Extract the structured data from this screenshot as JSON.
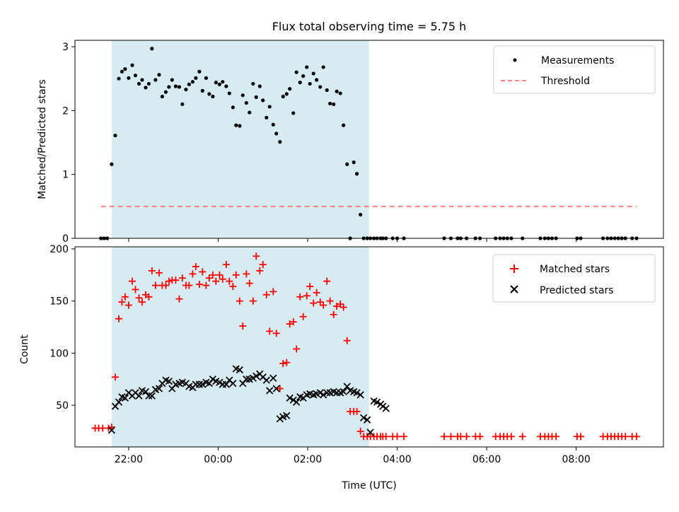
{
  "chart_data": {
    "title": "Flux total observing time = 5.75 h",
    "xlabel": "Time (UTC)",
    "x_unit": "hours (UTC, values >= 24 are after midnight)",
    "xlim": [
      20.8,
      33.95
    ],
    "x_ticks": [
      {
        "value": 22,
        "label": "22:00"
      },
      {
        "value": 24,
        "label": "00:00"
      },
      {
        "value": 26,
        "label": "02:00"
      },
      {
        "value": 28,
        "label": "04:00"
      },
      {
        "value": 30,
        "label": "06:00"
      },
      {
        "value": 32,
        "label": "08:00"
      }
    ],
    "shaded_interval": {
      "x": [
        21.62,
        27.37
      ],
      "color": "#add8e6"
    },
    "colors": {
      "measurements": "#000000",
      "threshold": "#ff8080",
      "matched": "#ff0000",
      "predicted": "#000000"
    },
    "panels": [
      {
        "type": "scatter",
        "ylabel": "Matched/Predicted stars",
        "ylim": [
          0,
          3.1
        ],
        "y_ticks": [
          0,
          1,
          2,
          3
        ],
        "legend_position": "top-right",
        "grid": false,
        "series": [
          {
            "name": "Measurements",
            "marker": "dot",
            "x": [
              21.38,
              21.45,
              21.52,
              21.62,
              21.7,
              21.78,
              21.85,
              21.92,
              22.0,
              22.08,
              22.15,
              22.23,
              22.3,
              22.38,
              22.45,
              22.52,
              22.6,
              22.68,
              22.75,
              22.83,
              22.9,
              22.97,
              23.05,
              23.13,
              23.2,
              23.28,
              23.35,
              23.43,
              23.5,
              23.58,
              23.65,
              23.73,
              23.8,
              23.88,
              23.95,
              24.03,
              24.1,
              24.18,
              24.25,
              24.33,
              24.4,
              24.48,
              24.55,
              24.63,
              24.7,
              24.78,
              24.85,
              24.93,
              25.0,
              25.08,
              25.15,
              25.23,
              25.3,
              25.38,
              25.45,
              25.53,
              25.6,
              25.68,
              25.75,
              25.83,
              25.9,
              25.98,
              26.05,
              26.13,
              26.2,
              26.28,
              26.35,
              26.43,
              26.5,
              26.58,
              26.65,
              26.73,
              26.8,
              26.88,
              26.95,
              27.03,
              27.1,
              27.18,
              27.25,
              27.33,
              27.4,
              27.48,
              27.55,
              27.63,
              27.68,
              27.75,
              27.9,
              28.0,
              28.15,
              29.05,
              29.2,
              29.35,
              29.42,
              29.55,
              29.75,
              29.85,
              30.2,
              30.3,
              30.38,
              30.46,
              30.55,
              30.8,
              31.2,
              31.3,
              31.38,
              31.46,
              31.55,
              32.02,
              32.1,
              32.6,
              32.7,
              32.78,
              32.86,
              32.94,
              33.02,
              33.1,
              33.25,
              33.35
            ],
            "y": [
              0,
              0,
              0,
              1.16,
              1.61,
              2.5,
              2.61,
              2.65,
              2.51,
              2.71,
              2.55,
              2.42,
              2.48,
              2.36,
              2.42,
              2.97,
              2.48,
              2.56,
              2.22,
              2.29,
              2.37,
              2.48,
              2.38,
              2.37,
              2.1,
              2.33,
              2.41,
              2.45,
              2.51,
              2.61,
              2.31,
              2.51,
              2.26,
              2.22,
              2.44,
              2.41,
              2.45,
              2.38,
              2.27,
              2.05,
              1.77,
              1.76,
              2.24,
              2.12,
              1.97,
              2.42,
              2.21,
              2.38,
              2.16,
              1.89,
              2.06,
              1.78,
              1.64,
              1.51,
              2.22,
              2.26,
              2.34,
              1.96,
              2.6,
              2.44,
              2.54,
              2.68,
              2.42,
              2.58,
              2.48,
              2.37,
              2.68,
              2.32,
              2.11,
              2.1,
              2.3,
              2.27,
              1.77,
              1.16,
              0,
              1.19,
              1.01,
              0.37,
              0,
              0,
              0,
              0,
              0,
              0,
              0,
              0,
              0,
              0,
              0,
              0,
              0,
              0,
              0,
              0,
              0,
              0,
              0,
              0,
              0,
              0,
              0,
              0,
              0,
              0,
              0,
              0,
              0,
              0,
              0,
              0,
              0,
              0,
              0,
              0,
              0,
              0,
              0,
              0
            ]
          },
          {
            "name": "Threshold",
            "marker": "dashed-line",
            "x": [
              21.38,
              33.35
            ],
            "y": [
              0.5,
              0.5
            ]
          }
        ]
      },
      {
        "type": "scatter",
        "ylabel": "Count",
        "ylim": [
          10,
          202
        ],
        "y_ticks": [
          50,
          100,
          150,
          200
        ],
        "legend_position": "top-right",
        "grid": false,
        "series": [
          {
            "name": "Matched stars",
            "marker": "plus",
            "x": [
              21.25,
              21.33,
              21.42,
              21.55,
              21.62,
              21.7,
              21.78,
              21.85,
              21.92,
              22.0,
              22.08,
              22.15,
              22.23,
              22.3,
              22.38,
              22.45,
              22.52,
              22.6,
              22.68,
              22.75,
              22.83,
              22.9,
              22.97,
              23.05,
              23.13,
              23.2,
              23.28,
              23.35,
              23.43,
              23.5,
              23.58,
              23.65,
              23.73,
              23.8,
              23.88,
              23.95,
              24.03,
              24.1,
              24.18,
              24.25,
              24.33,
              24.4,
              24.48,
              24.55,
              24.63,
              24.7,
              24.78,
              24.85,
              24.93,
              25.0,
              25.08,
              25.15,
              25.23,
              25.3,
              25.38,
              25.45,
              25.53,
              25.6,
              25.68,
              25.75,
              25.83,
              25.9,
              25.98,
              26.05,
              26.13,
              26.2,
              26.28,
              26.35,
              26.43,
              26.5,
              26.58,
              26.65,
              26.73,
              26.8,
              26.88,
              26.95,
              27.03,
              27.1,
              27.18,
              27.25,
              27.33,
              27.4,
              27.48,
              27.55,
              27.63,
              27.68,
              27.75,
              27.9,
              28.0,
              28.15,
              29.05,
              29.2,
              29.35,
              29.42,
              29.55,
              29.75,
              29.85,
              30.2,
              30.3,
              30.38,
              30.46,
              30.55,
              30.8,
              31.2,
              31.3,
              31.38,
              31.46,
              31.55,
              32.02,
              32.1,
              32.6,
              32.7,
              32.78,
              32.86,
              32.94,
              33.02,
              33.1,
              33.25,
              33.35
            ],
            "y": [
              28,
              28,
              28,
              28,
              29,
              77,
              133,
              149,
              154,
              146,
              169,
              161,
              153,
              149,
              156,
              154,
              179,
              165,
              177,
              165,
              165,
              169,
              170,
              170,
              152,
              172,
              165,
              165,
              176,
              183,
              166,
              178,
              165,
              172,
              175,
              169,
              175,
              171,
              185,
              169,
              164,
              175,
              150,
              126,
              176,
              167,
              150,
              193,
              179,
              185,
              156,
              121,
              159,
              119,
              66,
              90,
              91,
              128,
              130,
              104,
              154,
              135,
              155,
              164,
              148,
              158,
              149,
              146,
              169,
              150,
              137,
              145,
              147,
              144,
              112,
              44,
              44,
              44,
              25,
              20,
              20,
              20,
              20,
              20,
              20,
              20,
              20,
              20,
              20,
              20,
              20,
              20,
              20,
              20,
              20,
              20,
              20,
              20,
              20,
              20,
              20,
              20,
              20,
              20,
              20,
              20,
              20,
              20,
              20,
              20,
              20,
              20,
              20,
              20,
              20,
              20,
              20,
              20,
              20
            ]
          },
          {
            "name": "Predicted stars",
            "marker": "x",
            "x": [
              21.62,
              21.7,
              21.78,
              21.85,
              21.92,
              22.0,
              22.08,
              22.15,
              22.23,
              22.3,
              22.38,
              22.45,
              22.52,
              22.6,
              22.68,
              22.75,
              22.83,
              22.9,
              22.97,
              23.05,
              23.13,
              23.2,
              23.28,
              23.35,
              23.43,
              23.5,
              23.58,
              23.65,
              23.73,
              23.8,
              23.88,
              23.95,
              24.03,
              24.1,
              24.18,
              24.25,
              24.33,
              24.4,
              24.48,
              24.55,
              24.63,
              24.7,
              24.78,
              24.85,
              24.93,
              25.0,
              25.08,
              25.15,
              25.23,
              25.3,
              25.38,
              25.45,
              25.53,
              25.6,
              25.68,
              25.75,
              25.83,
              25.9,
              25.98,
              26.05,
              26.13,
              26.2,
              26.28,
              26.35,
              26.43,
              26.5,
              26.58,
              26.65,
              26.73,
              26.8,
              26.88,
              26.95,
              27.03,
              27.1,
              27.18,
              27.25,
              27.33,
              27.4,
              27.48,
              27.55,
              27.63,
              27.68,
              27.75
            ],
            "y": [
              26,
              49,
              53,
              58,
              57,
              62,
              59,
              62,
              59,
              64,
              63,
              59,
              59,
              65,
              66,
              71,
              74,
              73,
              66,
              70,
              71,
              72,
              71,
              68,
              67,
              70,
              70,
              70,
              72,
              71,
              75,
              73,
              72,
              70,
              70,
              74,
              71,
              85,
              84,
              71,
              75,
              75,
              76,
              78,
              80,
              77,
              74,
              64,
              76,
              66,
              37,
              39,
              40,
              57,
              55,
              53,
              58,
              57,
              60,
              61,
              60,
              61,
              62,
              60,
              62,
              62,
              63,
              62,
              62,
              63,
              68,
              64,
              63,
              62,
              60,
              38,
              36,
              24,
              54,
              53,
              51,
              49,
              47
            ]
          }
        ]
      }
    ]
  }
}
